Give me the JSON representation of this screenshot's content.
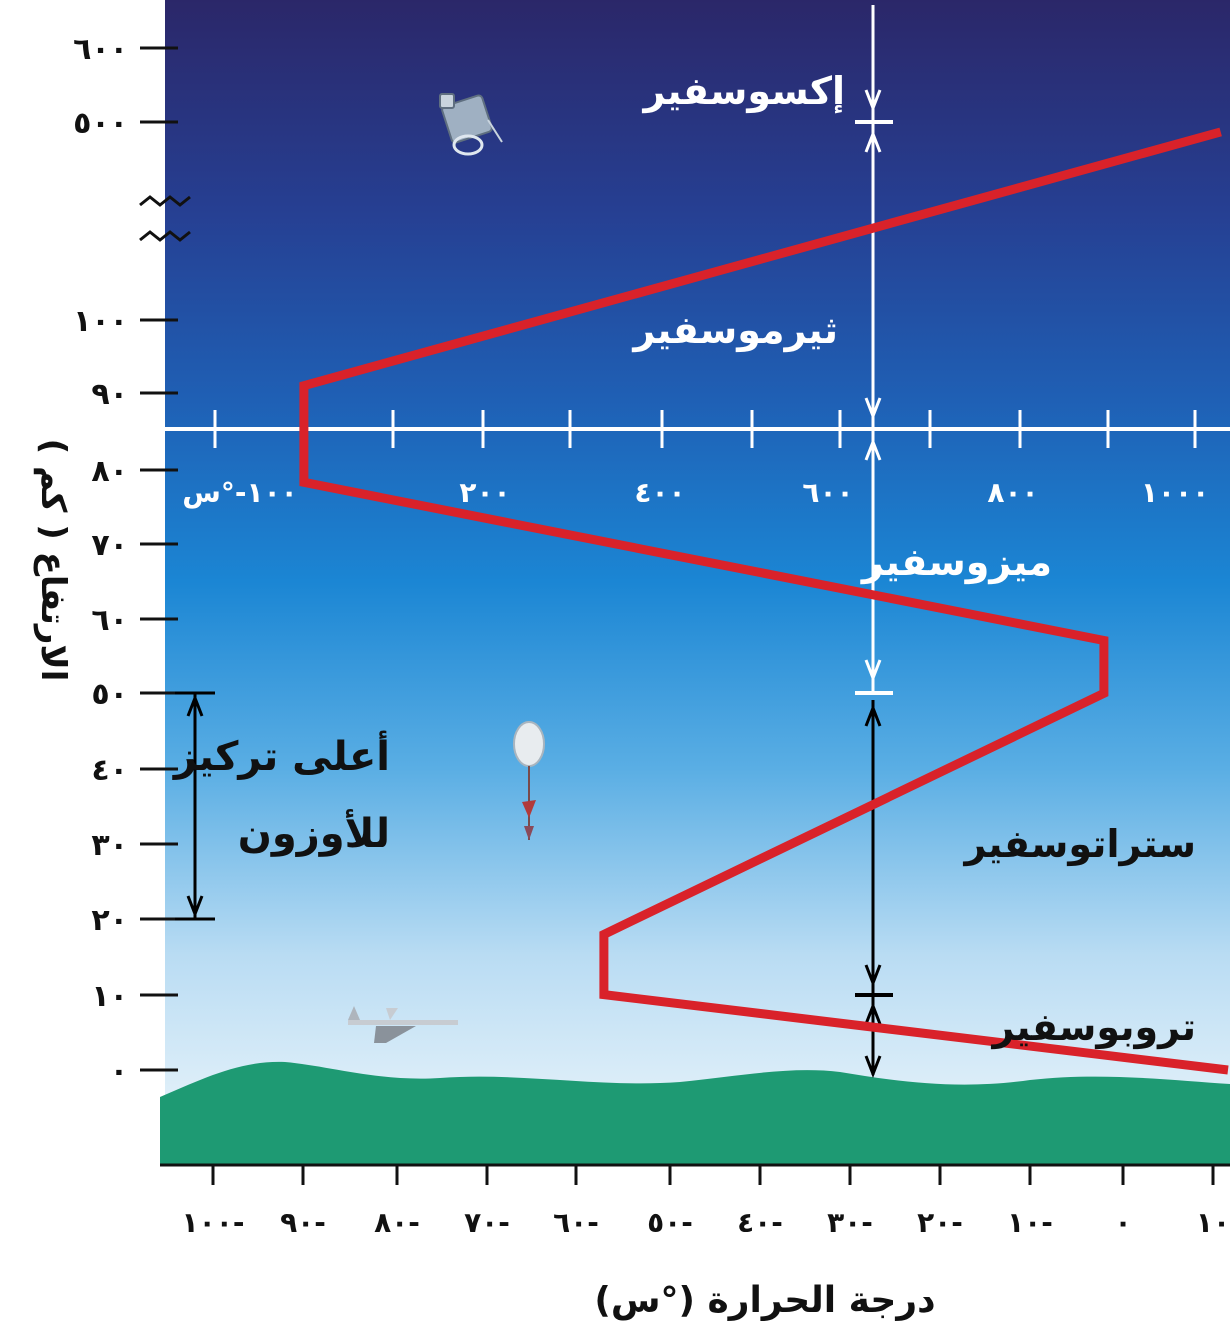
{
  "y_axis": {
    "label": "الارتفاع ( كم )",
    "ticks": [
      "٦٠٠",
      "٥٠٠",
      "١٠٠",
      "٩٠",
      "٨٠",
      "٧٠",
      "٦٠",
      "٥٠",
      "٤٠",
      "٣٠",
      "٢٠",
      "١٠",
      "٠"
    ]
  },
  "bottom_axis": {
    "label": "درجة الحرارة (°س)",
    "ticks": [
      "١٠",
      "٠",
      "١٠-",
      "٢٠-",
      "٣٠-",
      "٤٠-",
      "٥٠-",
      "٦٠-",
      "٧٠-",
      "٨٠-",
      "٩٠-",
      "١٠٠-"
    ]
  },
  "upper_axis": {
    "ticks": [
      "١٠٠-°س",
      "٢٠٠",
      "٤٠٠",
      "٦٠٠",
      "٨٠٠",
      "١٠٠٠"
    ]
  },
  "layers": {
    "exosphere": "إكسوسفير",
    "thermosphere": "ثيرموسفير",
    "mesosphere": "ميزوسفير",
    "stratosphere": "ستراتوسفير",
    "troposphere": "تروبوسفير"
  },
  "ozone": {
    "line1": "أعلى تركيز",
    "line2": "للأوزون"
  },
  "profile_points_deg_c_km": [
    {
      "temp_c": 15,
      "alt_km": 0
    },
    {
      "temp_c": -57,
      "alt_km": 10
    },
    {
      "temp_c": -57,
      "alt_km": 18
    },
    {
      "temp_c": -2,
      "alt_km": 50
    },
    {
      "temp_c": -2,
      "alt_km": 57
    },
    {
      "temp_c": -90,
      "alt_km": 78
    },
    {
      "temp_c": -90,
      "alt_km": 91
    },
    {
      "temp_c": 1000,
      "alt_km": 480
    }
  ],
  "colors": {
    "profile": "#d9222a",
    "ground": "#1e9a73",
    "sky_top": "#2a2870",
    "sky_mid": "#1f78c8",
    "sky_low": "#e9f4fb",
    "guide_white": "#ffffff",
    "guide_black": "#000000"
  },
  "icons": [
    "satellite-icon",
    "weather-balloon-icon",
    "airplane-icon"
  ]
}
